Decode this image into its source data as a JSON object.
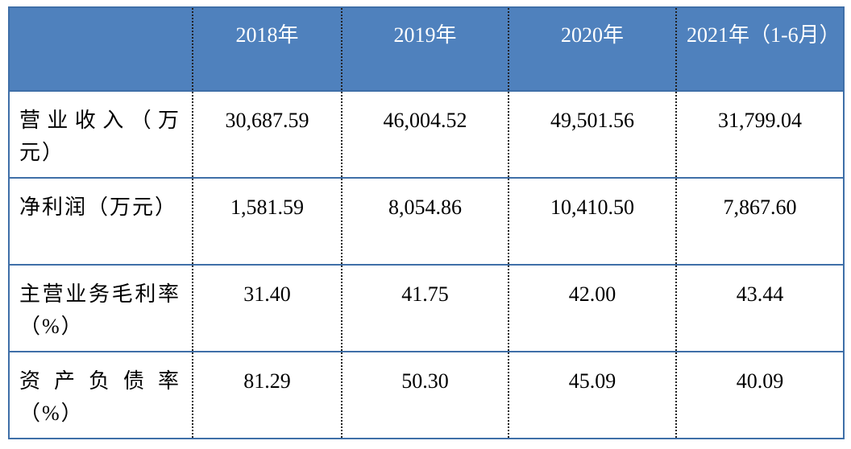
{
  "table": {
    "header": [
      "2018年",
      "2019年",
      "2020年",
      "2021年（1-6月）"
    ],
    "rows": [
      {
        "label": "营业收入（万元）",
        "values": [
          "30,687.59",
          "46,004.52",
          "49,501.56",
          "31,799.04"
        ]
      },
      {
        "label": "净利润（万元）",
        "values": [
          "1,581.59",
          "8,054.86",
          "10,410.50",
          "7,867.60"
        ]
      },
      {
        "label": "主营业务毛利率（%）",
        "values": [
          "31.40",
          "41.75",
          "42.00",
          "43.44"
        ]
      },
      {
        "label": "资产负债率（%）",
        "values": [
          "81.29",
          "50.30",
          "45.09",
          "40.09"
        ]
      }
    ]
  }
}
